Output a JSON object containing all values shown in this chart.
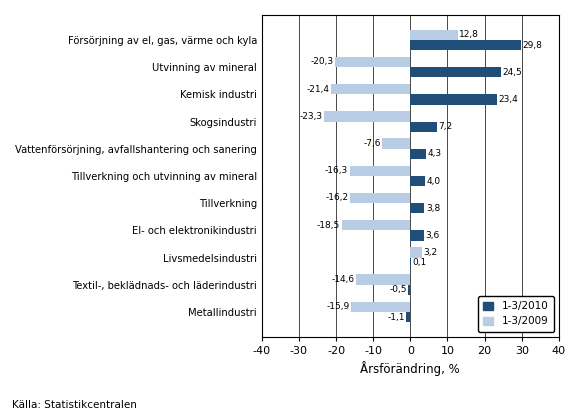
{
  "categories": [
    "Försörjning av el, gas, värme och kyla",
    "Utvinning av mineral",
    "Kemisk industri",
    "Skogsindustri",
    "Vattenförsörjning, avfallshantering och sanering",
    "Tillverkning och utvinning av mineral",
    "Tillverkning",
    "El- och elektronikindustri",
    "Livsmedelsindustri",
    "Textil-, beklädnads- och läderindustri",
    "Metallindustri"
  ],
  "values_2010": [
    29.8,
    24.5,
    23.4,
    7.2,
    4.3,
    4.0,
    3.8,
    3.6,
    0.1,
    -0.5,
    -1.1
  ],
  "values_2009": [
    12.8,
    -20.3,
    -21.4,
    -23.3,
    -7.6,
    -16.3,
    -16.2,
    -18.5,
    3.2,
    -14.6,
    -15.9
  ],
  "labels_2010": [
    "29,8",
    "24,5",
    "23,4",
    "7,2",
    "4,3",
    "4,0",
    "3,8",
    "3,6",
    "0,1",
    "-0,5",
    "-1,1"
  ],
  "labels_2009": [
    "12,8",
    "-20,3",
    "-21,4",
    "-23,3",
    "-7,6",
    "-16,3",
    "-16,2",
    "-18,5",
    "3,2",
    "-14,6",
    "-15,9"
  ],
  "color_2010": "#1F4E79",
  "color_2009": "#B8CCE4",
  "xlabel": "Årsförändring, %",
  "xlim": [
    -40,
    40
  ],
  "xticks": [
    -40,
    -30,
    -20,
    -10,
    0,
    10,
    20,
    30,
    40
  ],
  "xtick_labels": [
    "-40",
    "-30",
    "-20",
    "-10",
    "0",
    "10",
    "20",
    "30",
    "40"
  ],
  "legend_2010": "1-3/2010",
  "legend_2009": "1-3/2009",
  "source_text": "Källa: Statistikcentralen",
  "bar_height": 0.38,
  "background_color": "#FFFFFF",
  "grid_color": "#000000",
  "spine_color": "#7F7F7F"
}
